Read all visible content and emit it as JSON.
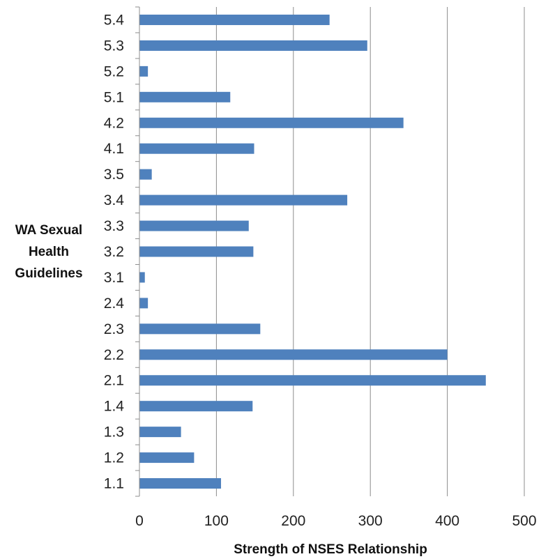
{
  "chart_data": {
    "type": "bar",
    "orientation": "horizontal",
    "categories": [
      "5.4",
      "5.3",
      "5.2",
      "5.1",
      "4.2",
      "4.1",
      "3.5",
      "3.4",
      "3.3",
      "3.2",
      "3.1",
      "2.4",
      "2.3",
      "2.2",
      "2.1",
      "1.4",
      "1.3",
      "1.2",
      "1.1"
    ],
    "values": [
      247,
      296,
      11,
      118,
      343,
      149,
      16,
      270,
      142,
      148,
      7,
      11,
      157,
      400,
      450,
      147,
      54,
      71,
      106
    ],
    "xlabel": "Strength of NSES Relationship",
    "ylabel": "WA Sexual Health Guidelines",
    "xlim": [
      0,
      500
    ],
    "xticks": [
      "0",
      "100",
      "200",
      "300",
      "400",
      "500"
    ],
    "grid": "vertical",
    "bar_color": "#4f81bd"
  }
}
